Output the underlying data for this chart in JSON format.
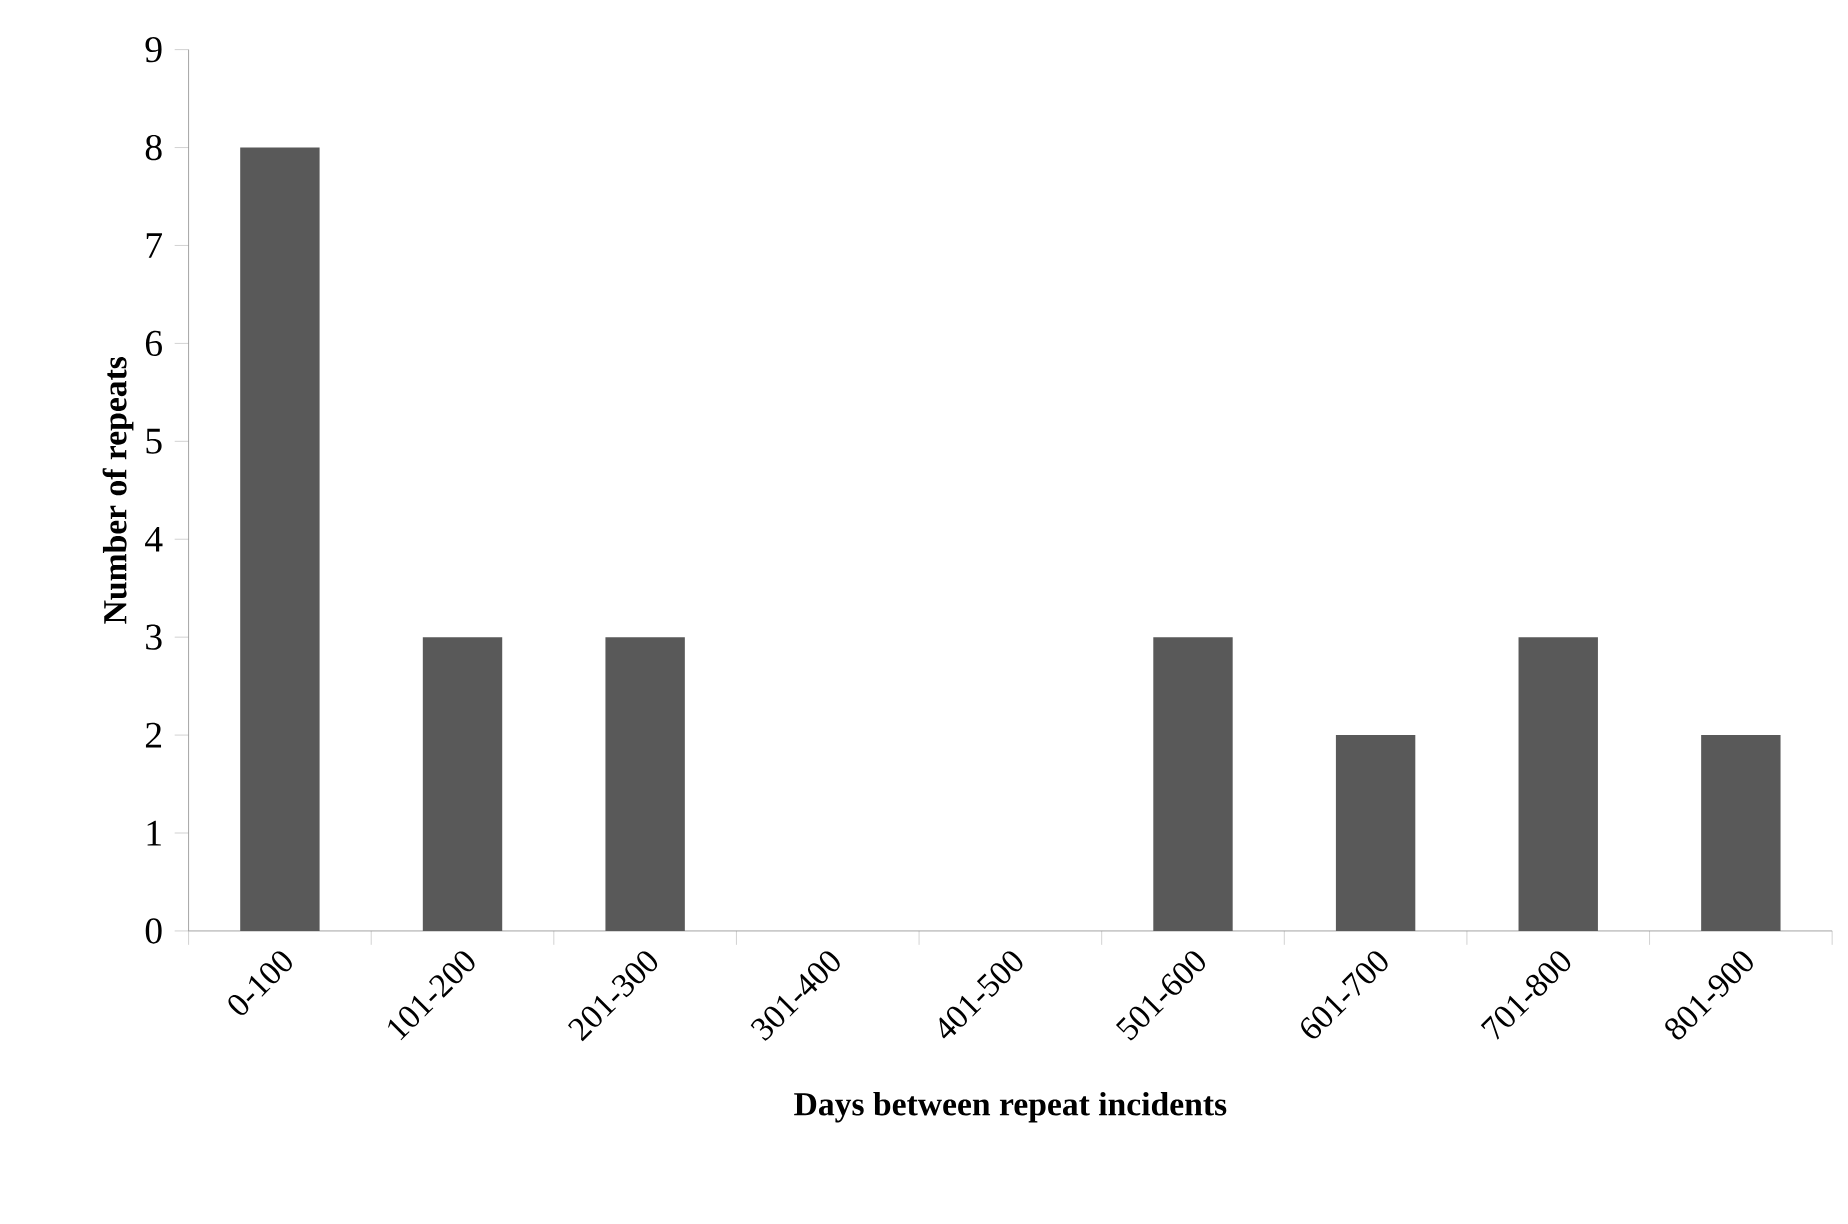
{
  "chart_data": {
    "type": "bar",
    "xlabel": "Days between repeat incidents",
    "ylabel": "Number of repeats",
    "categories": [
      "0-100",
      "101-200",
      "201-300",
      "301-400",
      "401-500",
      "501-600",
      "601-700",
      "701-800",
      "801-900"
    ],
    "values": [
      8,
      3,
      3,
      0,
      0,
      3,
      2,
      3,
      2
    ],
    "color": "#595959",
    "ylim": [
      0,
      9
    ],
    "yticks": [
      0,
      1,
      2,
      3,
      4,
      5,
      6,
      7,
      8,
      9
    ],
    "grid": false
  }
}
